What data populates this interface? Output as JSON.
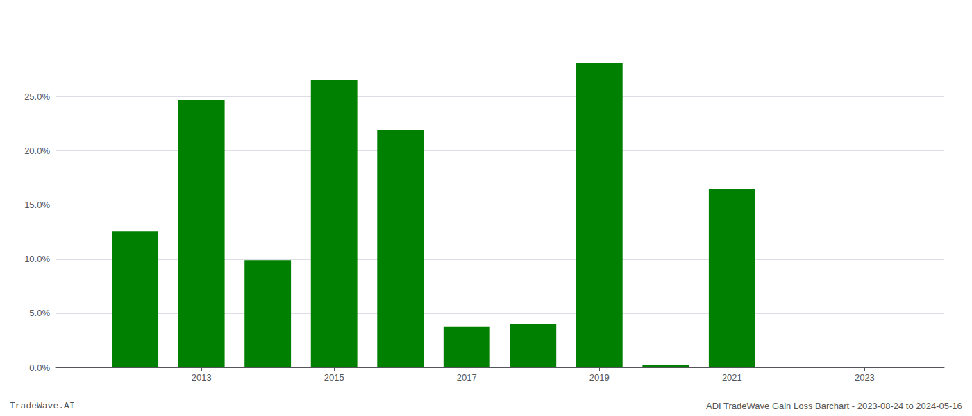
{
  "chart_data": {
    "type": "bar",
    "x": [
      2012,
      2013,
      2014,
      2015,
      2016,
      2017,
      2018,
      2019,
      2020,
      2021,
      2022
    ],
    "values": [
      0.126,
      0.247,
      0.099,
      0.265,
      0.219,
      0.038,
      0.04,
      0.281,
      0.002,
      0.165,
      0.0
    ],
    "color": "#008000",
    "xlim": [
      2010.8,
      2024.2
    ],
    "xticks": [
      2013,
      2015,
      2017,
      2019,
      2021,
      2023
    ],
    "ylim": [
      0,
      0.32
    ],
    "yticks": [
      {
        "value": 0.0,
        "label": "0.0%"
      },
      {
        "value": 0.05,
        "label": "5.0%"
      },
      {
        "value": 0.1,
        "label": "10.0%"
      },
      {
        "value": 0.15,
        "label": "15.0%"
      },
      {
        "value": 0.2,
        "label": "20.0%"
      },
      {
        "value": 0.25,
        "label": "25.0%"
      }
    ],
    "grid": true,
    "annotations": [
      "TradeWave.AI",
      "ADI TradeWave Gain Loss Barchart - 2023-08-24 to 2024-05-16"
    ]
  }
}
